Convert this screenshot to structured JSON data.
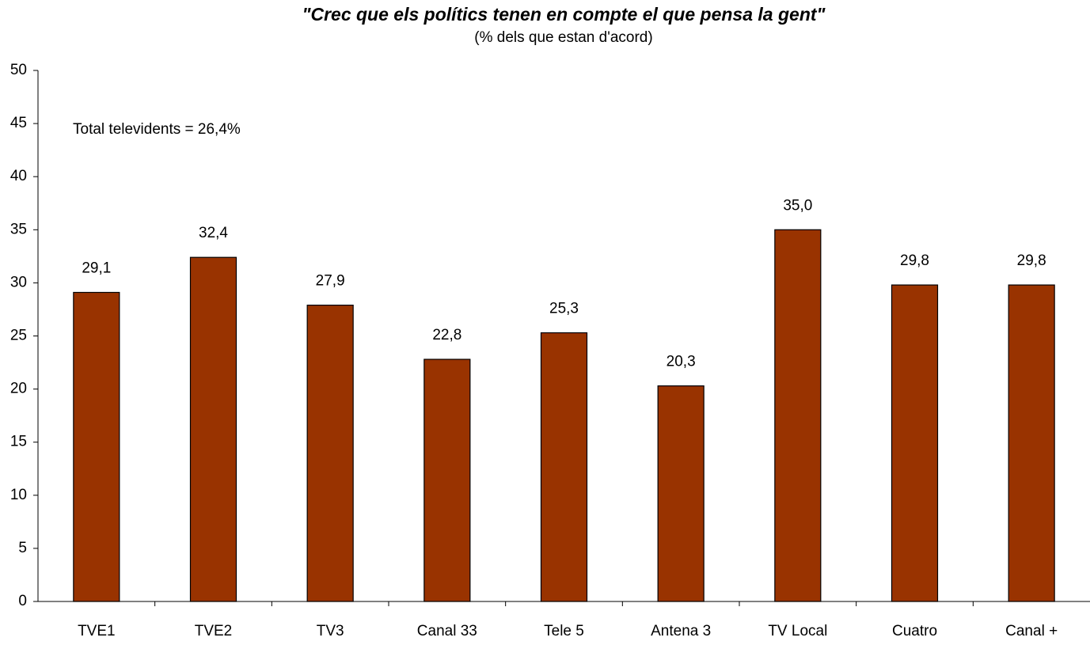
{
  "chart_data": {
    "type": "bar",
    "title": "\"Crec que els polítics tenen en compte el que pensa la gent\"",
    "subtitle": "(% dels que estan d'acord)",
    "annotation": "Total televidents = 26,4%",
    "categories": [
      "TVE1",
      "TVE2",
      "TV3",
      "Canal 33",
      "Tele 5",
      "Antena 3",
      "TV Local",
      "Cuatro",
      "Canal +"
    ],
    "values": [
      29.1,
      32.4,
      27.9,
      22.8,
      25.3,
      20.3,
      35.0,
      29.8,
      29.8
    ],
    "value_labels": [
      "29,1",
      "32,4",
      "27,9",
      "22,8",
      "25,3",
      "20,3",
      "35,0",
      "29,8",
      "29,8"
    ],
    "color": "#993300",
    "ylim": [
      0,
      50
    ],
    "yticks": [
      0,
      5,
      10,
      15,
      20,
      25,
      30,
      35,
      40,
      45,
      50
    ],
    "grid": false
  }
}
